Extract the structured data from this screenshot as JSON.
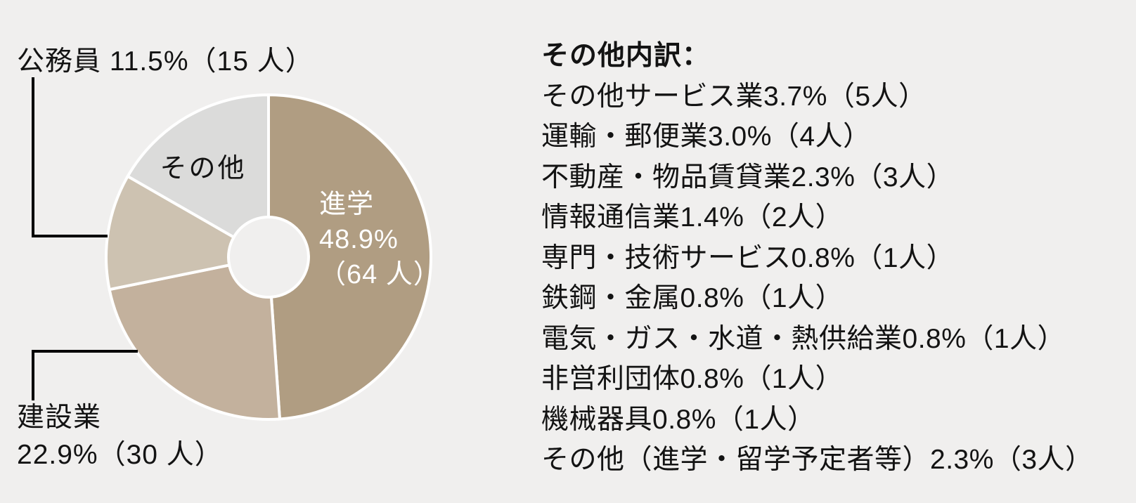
{
  "background_color": "#f0efee",
  "chart_data": {
    "type": "pie",
    "subtype": "donut",
    "title": "",
    "legend": "none",
    "start_angle_deg": 0,
    "direction": "clockwise",
    "stroke_color": "#ffffff",
    "categories": [
      "進学",
      "建設業",
      "公務員",
      "その他"
    ],
    "values_pct": [
      48.9,
      22.9,
      11.5,
      16.7
    ],
    "segments": [
      {
        "key": "shingaku",
        "label": "進学",
        "pct": 48.9,
        "count": 64,
        "color": "#b09d82"
      },
      {
        "key": "kensetsu",
        "label": "建設業",
        "pct": 22.9,
        "count": 30,
        "color": "#c3b19d"
      },
      {
        "key": "koumuin",
        "label": "公務員",
        "pct": 11.5,
        "count": 15,
        "color": "#cdc2b1"
      },
      {
        "key": "sonota",
        "label": "その他",
        "pct": 16.7,
        "count": null,
        "color": "#dbdbda"
      }
    ]
  },
  "labels": {
    "koumuin": "公務員 11.5%（15 人）",
    "kensetsu_line1": "建設業",
    "kensetsu_line2": "22.9%（30 人）",
    "sonota": "その他",
    "shingaku_line1": "進学",
    "shingaku_line2": "48.9%",
    "shingaku_line3": "（64 人）"
  },
  "breakdown": {
    "title": "その他内訳：",
    "items": [
      {
        "text": "その他サービス業3.7%（5人）",
        "label": "その他サービス業",
        "pct": 3.7,
        "count": 5
      },
      {
        "text": "運輸・郵便業3.0%（4人）",
        "label": "運輸・郵便業",
        "pct": 3.0,
        "count": 4
      },
      {
        "text": "不動産・物品賃貸業2.3%（3人）",
        "label": "不動産・物品賃貸業",
        "pct": 2.3,
        "count": 3
      },
      {
        "text": "情報通信業1.4%（2人）",
        "label": "情報通信業",
        "pct": 1.4,
        "count": 2
      },
      {
        "text": "専門・技術サービス0.8%（1人）",
        "label": "専門・技術サービス",
        "pct": 0.8,
        "count": 1
      },
      {
        "text": "鉄鋼・金属0.8%（1人）",
        "label": "鉄鋼・金属",
        "pct": 0.8,
        "count": 1
      },
      {
        "text": "電気・ガス・水道・熱供給業0.8%（1人）",
        "label": "電気・ガス・水道・熱供給業",
        "pct": 0.8,
        "count": 1
      },
      {
        "text": "非営利団体0.8%（1人）",
        "label": "非営利団体",
        "pct": 0.8,
        "count": 1
      },
      {
        "text": "機械器具0.8%（1人）",
        "label": "機械器具",
        "pct": 0.8,
        "count": 1
      },
      {
        "text": "その他（進学・留学予定者等）2.3%（3人）",
        "label": "その他（進学・留学予定者等）",
        "pct": 2.3,
        "count": 3
      }
    ]
  }
}
